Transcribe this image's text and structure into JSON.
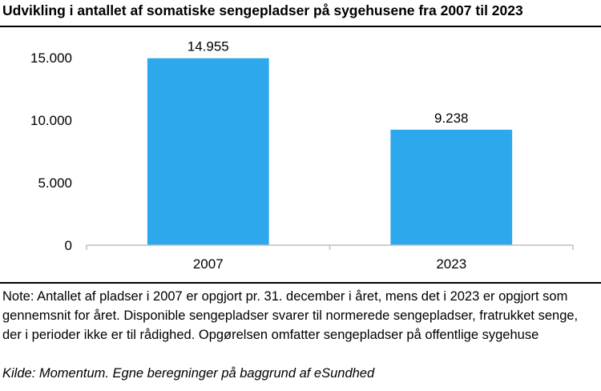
{
  "title": "Udvikling i antallet af somatiske sengepladser på sygehusene fra 2007 til 2023",
  "note": "Note: Antallet af pladser i 2007 er opgjort pr. 31. december i året, mens det i 2023 er opgjort som gennemsnit for året. Disponible sengepladser svarer til normerede sengepladser, fratrukket senge, der i perioder ikke er til rådighed. Opgørelsen omfatter sengepladser på offentlige sygehuse",
  "source": "Kilde: Momentum. Egne beregninger på baggrund af eSundhed",
  "chart_data": {
    "type": "bar",
    "categories": [
      "2007",
      "2023"
    ],
    "values": [
      14955,
      9238
    ],
    "data_labels": [
      "14.955",
      "9.238"
    ],
    "yticks": [
      0,
      5000,
      10000,
      15000
    ],
    "ytick_labels": [
      "0",
      "5.000",
      "10.000",
      "15.000"
    ],
    "ylim": [
      0,
      15000
    ],
    "grid": false,
    "legend": "none",
    "bar_color": "#2EA8EC",
    "axis_color": "#BFBFBF"
  }
}
